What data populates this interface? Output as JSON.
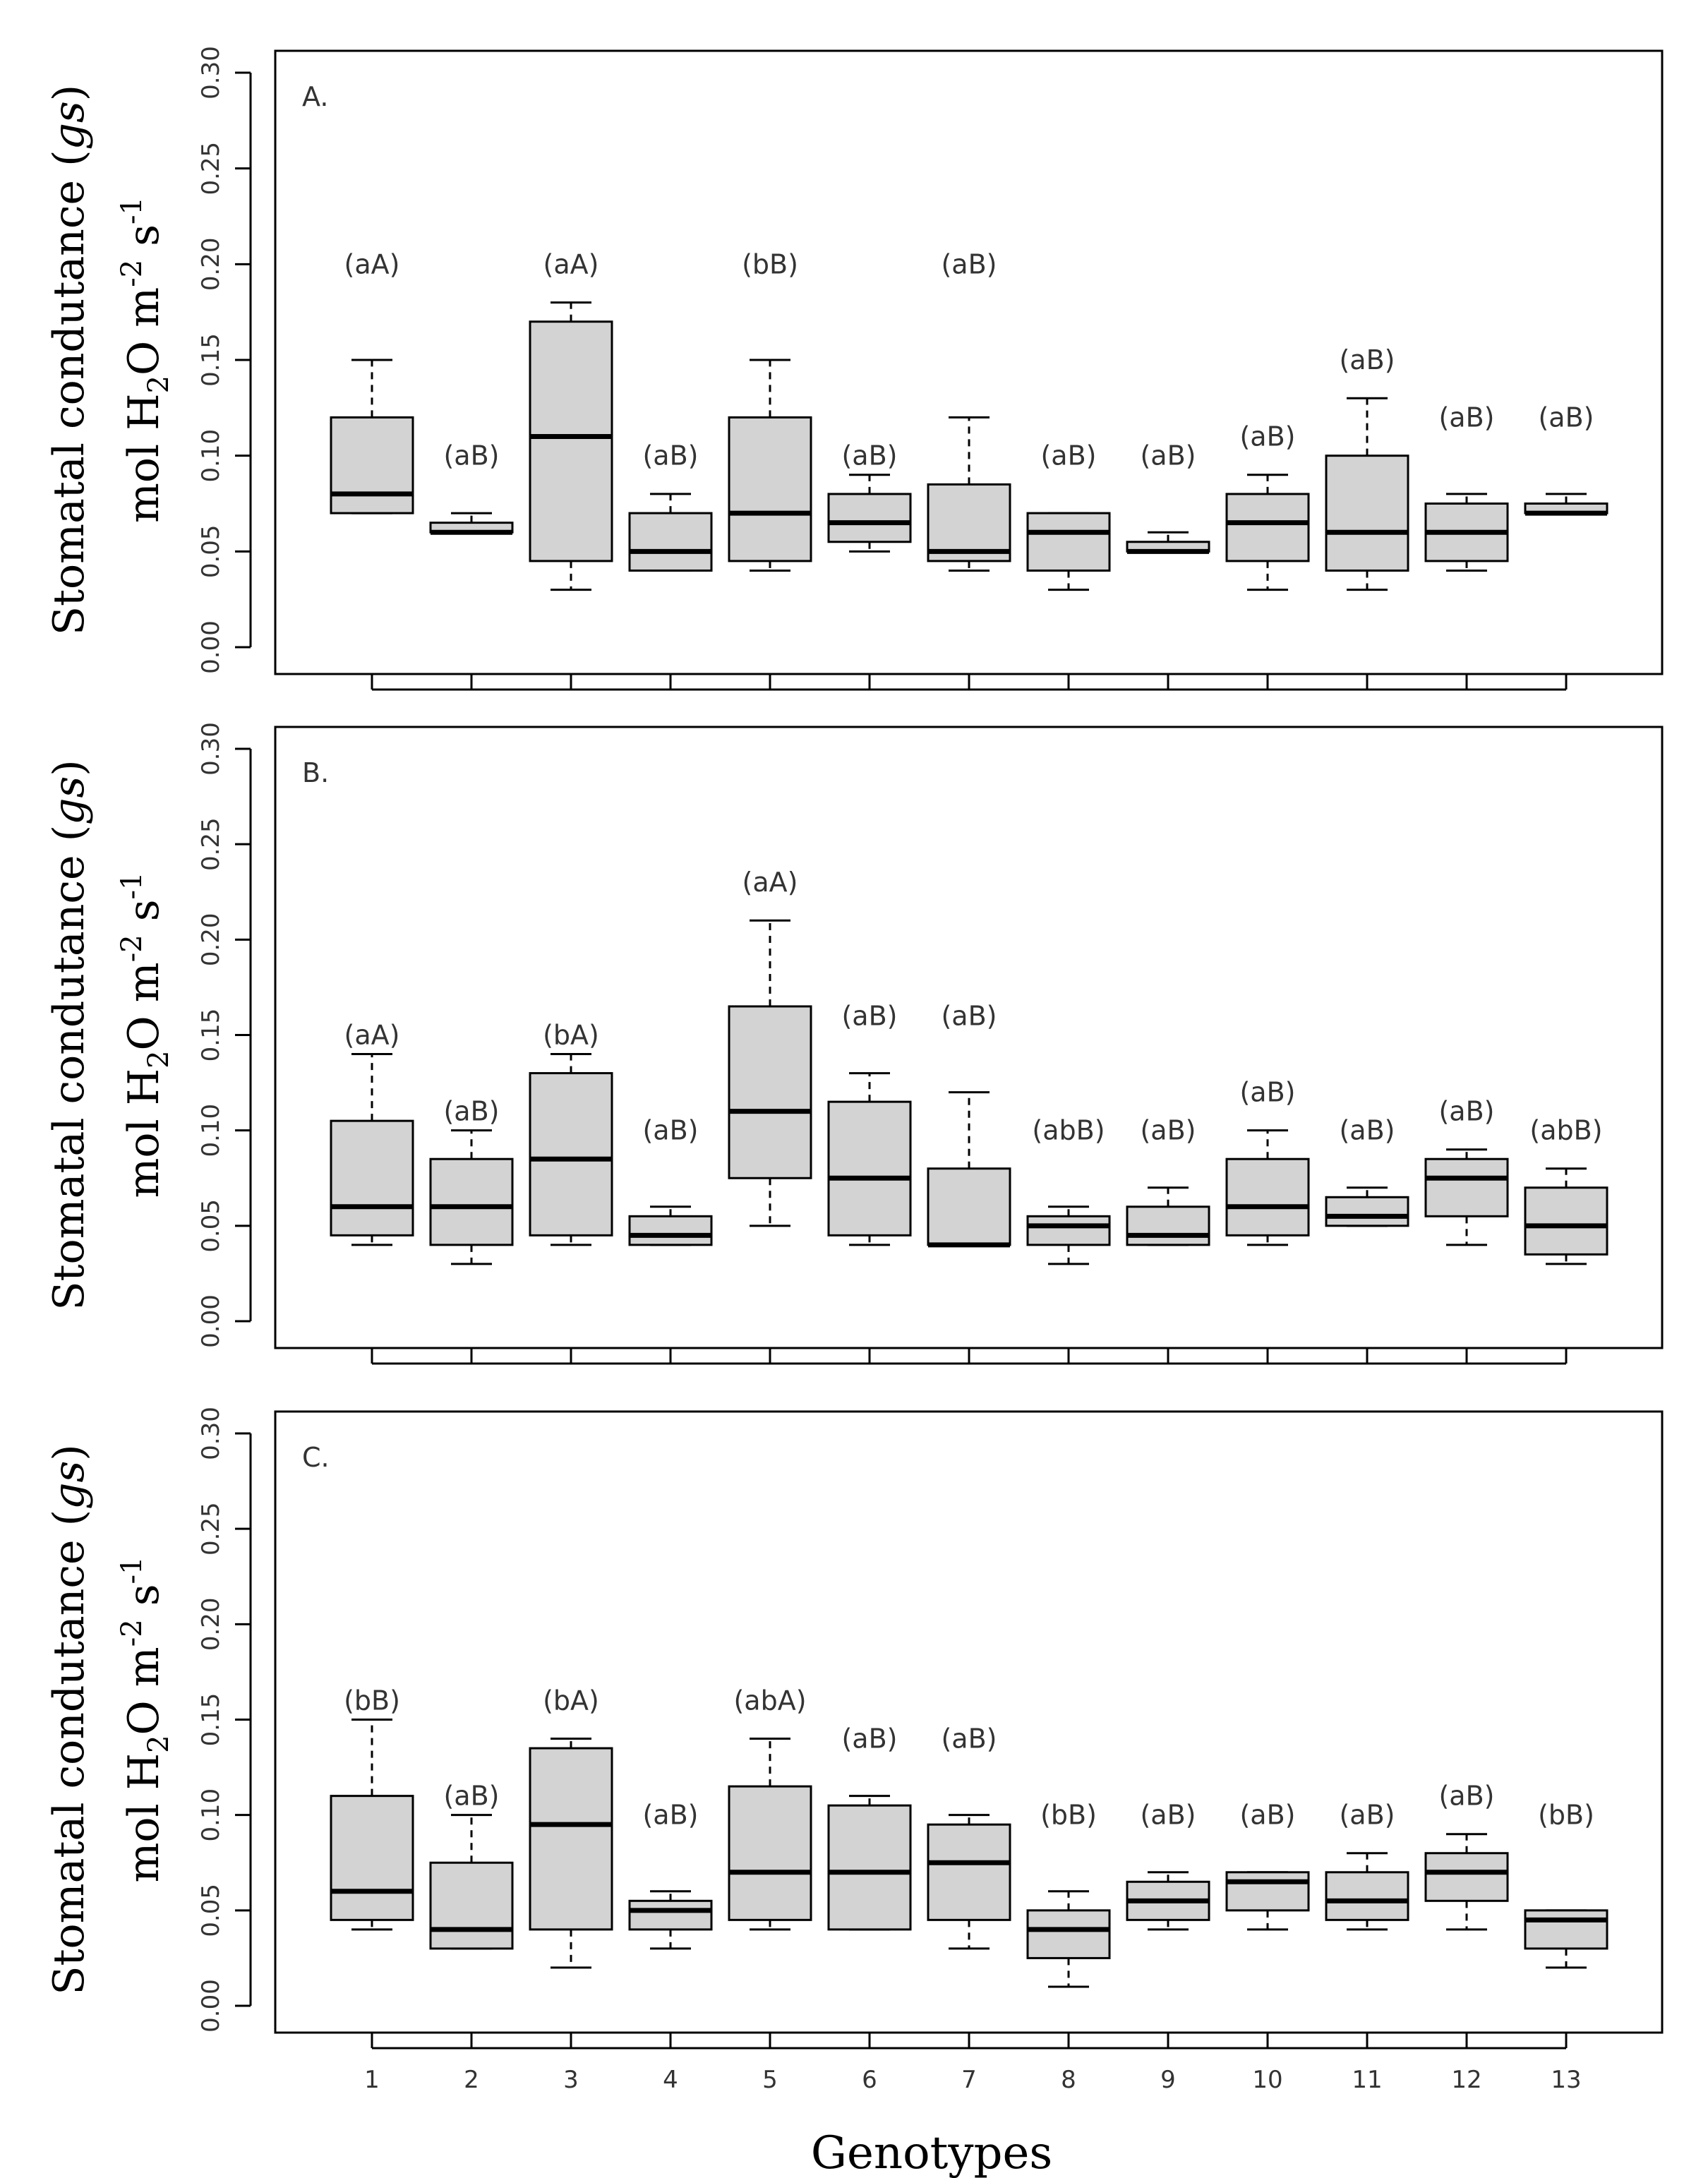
{
  "chart_data": {
    "type": "box",
    "xlabel": "Genotypes",
    "ylabel": {
      "line1_prefix": "Stomatal condutance (",
      "line1_italic": "gs",
      "line1_suffix": ")",
      "line2_a": "mol H",
      "line2_sub": "2",
      "line2_b": "O m",
      "line2_sup1": "-2",
      "line2_c": " s",
      "line2_sup2": "-1"
    },
    "categories": [
      "1",
      "2",
      "3",
      "4",
      "5",
      "6",
      "7",
      "8",
      "9",
      "10",
      "11",
      "12",
      "13"
    ],
    "ylim": [
      0,
      0.3
    ],
    "yticks": [
      "0.00",
      "0.05",
      "0.10",
      "0.15",
      "0.20",
      "0.25",
      "0.30"
    ],
    "panels": [
      {
        "label": "A.",
        "boxes": [
          {
            "min": 0.07,
            "q1": 0.07,
            "median": 0.08,
            "q3": 0.12,
            "max": 0.15,
            "letter": "(aA)",
            "letter_y": 0.2
          },
          {
            "min": 0.06,
            "q1": 0.06,
            "median": 0.06,
            "q3": 0.065,
            "max": 0.07,
            "letter": "(aB)",
            "letter_y": 0.1
          },
          {
            "min": 0.03,
            "q1": 0.045,
            "median": 0.11,
            "q3": 0.17,
            "max": 0.18,
            "letter": "(aA)",
            "letter_y": 0.2
          },
          {
            "min": 0.04,
            "q1": 0.04,
            "median": 0.05,
            "q3": 0.07,
            "max": 0.08,
            "letter": "(aB)",
            "letter_y": 0.1
          },
          {
            "min": 0.04,
            "q1": 0.045,
            "median": 0.07,
            "q3": 0.12,
            "max": 0.15,
            "letter": "(bB)",
            "letter_y": 0.2
          },
          {
            "min": 0.05,
            "q1": 0.055,
            "median": 0.065,
            "q3": 0.08,
            "max": 0.09,
            "letter": "(aB)",
            "letter_y": 0.1
          },
          {
            "min": 0.04,
            "q1": 0.045,
            "median": 0.05,
            "q3": 0.085,
            "max": 0.12,
            "letter": "(aB)",
            "letter_y": 0.2
          },
          {
            "min": 0.03,
            "q1": 0.04,
            "median": 0.06,
            "q3": 0.07,
            "max": 0.07,
            "letter": "(aB)",
            "letter_y": 0.1
          },
          {
            "min": 0.05,
            "q1": 0.05,
            "median": 0.05,
            "q3": 0.055,
            "max": 0.06,
            "letter": "(aB)",
            "letter_y": 0.1
          },
          {
            "min": 0.03,
            "q1": 0.045,
            "median": 0.065,
            "q3": 0.08,
            "max": 0.09,
            "letter": "(aB)",
            "letter_y": 0.11
          },
          {
            "min": 0.03,
            "q1": 0.04,
            "median": 0.06,
            "q3": 0.1,
            "max": 0.13,
            "letter": "(aB)",
            "letter_y": 0.15
          },
          {
            "min": 0.04,
            "q1": 0.045,
            "median": 0.06,
            "q3": 0.075,
            "max": 0.08,
            "letter": "(aB)",
            "letter_y": 0.12
          },
          {
            "min": 0.07,
            "q1": 0.07,
            "median": 0.07,
            "q3": 0.075,
            "max": 0.08,
            "letter": "(aB)",
            "letter_y": 0.12
          }
        ]
      },
      {
        "label": "B.",
        "boxes": [
          {
            "min": 0.04,
            "q1": 0.045,
            "median": 0.06,
            "q3": 0.105,
            "max": 0.14,
            "letter": "(aA)",
            "letter_y": 0.15
          },
          {
            "min": 0.03,
            "q1": 0.04,
            "median": 0.06,
            "q3": 0.085,
            "max": 0.1,
            "letter": "(aB)",
            "letter_y": 0.11
          },
          {
            "min": 0.04,
            "q1": 0.045,
            "median": 0.085,
            "q3": 0.13,
            "max": 0.14,
            "letter": "(bA)",
            "letter_y": 0.15
          },
          {
            "min": 0.04,
            "q1": 0.04,
            "median": 0.045,
            "q3": 0.055,
            "max": 0.06,
            "letter": "(aB)",
            "letter_y": 0.1
          },
          {
            "min": 0.05,
            "q1": 0.075,
            "median": 0.11,
            "q3": 0.165,
            "max": 0.21,
            "letter": "(aA)",
            "letter_y": 0.23
          },
          {
            "min": 0.04,
            "q1": 0.045,
            "median": 0.075,
            "q3": 0.115,
            "max": 0.13,
            "letter": "(aB)",
            "letter_y": 0.16
          },
          {
            "min": 0.04,
            "q1": 0.04,
            "median": 0.04,
            "q3": 0.08,
            "max": 0.12,
            "letter": "(aB)",
            "letter_y": 0.16
          },
          {
            "min": 0.03,
            "q1": 0.04,
            "median": 0.05,
            "q3": 0.055,
            "max": 0.06,
            "letter": "(abB)",
            "letter_y": 0.1
          },
          {
            "min": 0.04,
            "q1": 0.04,
            "median": 0.045,
            "q3": 0.06,
            "max": 0.07,
            "letter": "(aB)",
            "letter_y": 0.1
          },
          {
            "min": 0.04,
            "q1": 0.045,
            "median": 0.06,
            "q3": 0.085,
            "max": 0.1,
            "letter": "(aB)",
            "letter_y": 0.12
          },
          {
            "min": 0.05,
            "q1": 0.05,
            "median": 0.055,
            "q3": 0.065,
            "max": 0.07,
            "letter": "(aB)",
            "letter_y": 0.1
          },
          {
            "min": 0.04,
            "q1": 0.055,
            "median": 0.075,
            "q3": 0.085,
            "max": 0.09,
            "letter": "(aB)",
            "letter_y": 0.11
          },
          {
            "min": 0.03,
            "q1": 0.035,
            "median": 0.05,
            "q3": 0.07,
            "max": 0.08,
            "letter": "(abB)",
            "letter_y": 0.1
          }
        ]
      },
      {
        "label": "C.",
        "boxes": [
          {
            "min": 0.04,
            "q1": 0.045,
            "median": 0.06,
            "q3": 0.11,
            "max": 0.15,
            "letter": "(bB)",
            "letter_y": 0.16
          },
          {
            "min": 0.03,
            "q1": 0.03,
            "median": 0.04,
            "q3": 0.075,
            "max": 0.1,
            "letter": "(aB)",
            "letter_y": 0.11
          },
          {
            "min": 0.02,
            "q1": 0.04,
            "median": 0.095,
            "q3": 0.135,
            "max": 0.14,
            "letter": "(bA)",
            "letter_y": 0.16
          },
          {
            "min": 0.03,
            "q1": 0.04,
            "median": 0.05,
            "q3": 0.055,
            "max": 0.06,
            "letter": "(aB)",
            "letter_y": 0.1
          },
          {
            "min": 0.04,
            "q1": 0.045,
            "median": 0.07,
            "q3": 0.115,
            "max": 0.14,
            "letter": "(abA)",
            "letter_y": 0.16
          },
          {
            "min": 0.04,
            "q1": 0.04,
            "median": 0.07,
            "q3": 0.105,
            "max": 0.11,
            "letter": "(aB)",
            "letter_y": 0.14
          },
          {
            "min": 0.03,
            "q1": 0.045,
            "median": 0.075,
            "q3": 0.095,
            "max": 0.1,
            "letter": "(aB)",
            "letter_y": 0.14
          },
          {
            "min": 0.01,
            "q1": 0.025,
            "median": 0.04,
            "q3": 0.05,
            "max": 0.06,
            "letter": "(bB)",
            "letter_y": 0.1
          },
          {
            "min": 0.04,
            "q1": 0.045,
            "median": 0.055,
            "q3": 0.065,
            "max": 0.07,
            "letter": "(aB)",
            "letter_y": 0.1
          },
          {
            "min": 0.04,
            "q1": 0.05,
            "median": 0.065,
            "q3": 0.07,
            "max": 0.07,
            "letter": "(aB)",
            "letter_y": 0.1
          },
          {
            "min": 0.04,
            "q1": 0.045,
            "median": 0.055,
            "q3": 0.07,
            "max": 0.08,
            "letter": "(aB)",
            "letter_y": 0.1
          },
          {
            "min": 0.04,
            "q1": 0.055,
            "median": 0.07,
            "q3": 0.08,
            "max": 0.09,
            "letter": "(aB)",
            "letter_y": 0.11
          },
          {
            "min": 0.02,
            "q1": 0.03,
            "median": 0.045,
            "q3": 0.05,
            "max": 0.05,
            "letter": "(bB)",
            "letter_y": 0.1
          }
        ]
      }
    ],
    "colors": {
      "box_fill": "#d3d3d3",
      "stroke": "#000000",
      "text": "#333333"
    }
  }
}
